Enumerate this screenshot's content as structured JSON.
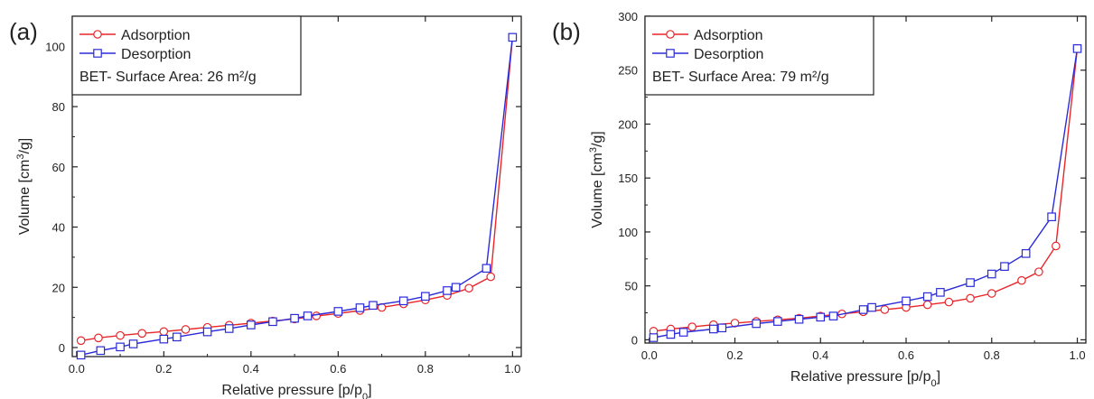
{
  "chart_data": [
    {
      "type": "line",
      "panel_label": "(a)",
      "xlabel": "Relative pressure [p/p",
      "xlabel_sub": "0",
      "xlabel_end": "]",
      "ylabel": "Volume [cm",
      "ylabel_sup": "3",
      "ylabel_end": "/g]",
      "xlim": [
        -0.01,
        1.02
      ],
      "ylim": [
        -3,
        110
      ],
      "xticks": [
        0.0,
        0.2,
        0.4,
        0.6,
        0.8,
        1.0
      ],
      "xtick_labels": [
        "0.0",
        "0.2",
        "0.4",
        "0.6",
        "0.8",
        "1.0"
      ],
      "yticks": [
        0,
        20,
        40,
        60,
        80,
        100
      ],
      "ytick_labels": [
        "0",
        "20",
        "40",
        "60",
        "80",
        "100"
      ],
      "grid": false,
      "legend_position": "top-left",
      "annotation": "BET- Surface Area: 26 m²/g",
      "series": [
        {
          "name": "Adsorption",
          "color": "#e8262a",
          "marker": "circle",
          "x": [
            0.01,
            0.05,
            0.1,
            0.15,
            0.2,
            0.25,
            0.3,
            0.35,
            0.4,
            0.45,
            0.5,
            0.55,
            0.6,
            0.65,
            0.7,
            0.75,
            0.8,
            0.85,
            0.9,
            0.95,
            1.0
          ],
          "y": [
            2.3,
            3.2,
            4.0,
            4.7,
            5.3,
            6.0,
            6.7,
            7.4,
            8.1,
            8.8,
            9.5,
            10.5,
            11.3,
            12.3,
            13.3,
            14.5,
            15.8,
            17.3,
            19.7,
            23.5,
            103
          ]
        },
        {
          "name": "Desorption",
          "color": "#2b2bd8",
          "marker": "square",
          "x": [
            0.01,
            0.055,
            0.1,
            0.13,
            0.2,
            0.23,
            0.3,
            0.35,
            0.4,
            0.45,
            0.5,
            0.53,
            0.6,
            0.65,
            0.68,
            0.75,
            0.8,
            0.85,
            0.87,
            0.94,
            1.0
          ],
          "y": [
            -2.5,
            -1.0,
            0.2,
            1.2,
            2.8,
            3.5,
            5.2,
            6.3,
            7.5,
            8.6,
            9.7,
            10.5,
            12.0,
            13.2,
            14.0,
            15.5,
            17.0,
            18.9,
            20.0,
            26.3,
            103
          ]
        }
      ]
    },
    {
      "type": "line",
      "panel_label": "(b)",
      "xlabel": "Relative pressure [p/p",
      "xlabel_sub": "0",
      "xlabel_end": "]",
      "ylabel": "Volume [cm",
      "ylabel_sup": "3",
      "ylabel_end": "/g]",
      "xlim": [
        -0.01,
        1.02
      ],
      "ylim": [
        -3,
        300
      ],
      "xticks": [
        0.0,
        0.2,
        0.4,
        0.6,
        0.8,
        1.0
      ],
      "xtick_labels": [
        "0.0",
        "0.2",
        "0.4",
        "0.6",
        "0.8",
        "1.0"
      ],
      "yticks": [
        0,
        50,
        100,
        150,
        200,
        250,
        300
      ],
      "ytick_labels": [
        "0",
        "50",
        "100",
        "150",
        "200",
        "250",
        "300"
      ],
      "grid": false,
      "legend_position": "top-left",
      "annotation": "BET- Surface Area: 79 m²/g",
      "series": [
        {
          "name": "Adsorption",
          "color": "#e8262a",
          "marker": "circle",
          "x": [
            0.01,
            0.05,
            0.1,
            0.15,
            0.2,
            0.25,
            0.3,
            0.35,
            0.4,
            0.45,
            0.5,
            0.55,
            0.6,
            0.65,
            0.7,
            0.75,
            0.8,
            0.87,
            0.91,
            0.95,
            1.0
          ],
          "y": [
            8,
            10,
            12,
            14,
            15.5,
            17,
            18.5,
            20,
            22,
            24,
            26,
            28,
            30,
            32.5,
            35,
            38.5,
            43,
            55,
            63,
            87,
            270
          ]
        },
        {
          "name": "Desorption",
          "color": "#2b2bd8",
          "marker": "square",
          "x": [
            0.01,
            0.05,
            0.08,
            0.15,
            0.17,
            0.25,
            0.3,
            0.35,
            0.4,
            0.43,
            0.5,
            0.52,
            0.6,
            0.65,
            0.68,
            0.75,
            0.8,
            0.83,
            0.88,
            0.94,
            1.0
          ],
          "y": [
            2,
            5,
            7,
            10,
            11,
            15,
            17,
            19,
            21,
            22,
            28,
            30,
            36,
            40,
            44,
            53,
            61,
            68,
            80,
            114,
            270
          ]
        }
      ]
    }
  ]
}
